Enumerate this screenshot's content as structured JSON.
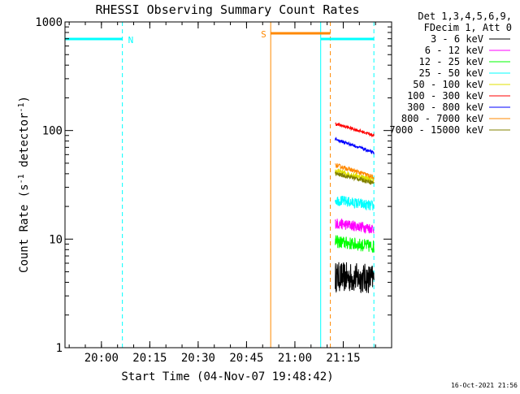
{
  "chart_data": {
    "type": "line",
    "title": "RHESSI Observing Summary Count Rates",
    "xlabel": "Start Time (04-Nov-07 19:48:42)",
    "ylabel_main": "Count Rate (s",
    "ylabel_sup1": "-1",
    "ylabel_mid": " detector",
    "ylabel_sup2": "-1",
    "ylabel_end": ")",
    "y_scale": "log",
    "ylim": [
      1,
      1000
    ],
    "xlim": [
      "19:48:42",
      "21:30:00"
    ],
    "x_ticks": [
      "20:00",
      "20:15",
      "20:30",
      "20:45",
      "21:00",
      "21:15"
    ],
    "y_ticks": [
      "1",
      "10",
      "100",
      "1000"
    ],
    "legend_header": [
      "Det 1,3,4,5,6,9,",
      "FDecim 1, Att 0"
    ],
    "legend_position": "right",
    "timestamp": "16-Oct-2021 21:56",
    "series": [
      {
        "name": "3 - 6 keV",
        "color": "#000000",
        "start": "21:12:30",
        "end": "21:24:30",
        "level_start": 4.5,
        "level_end": 4.3,
        "noise": 0.14
      },
      {
        "name": "6 - 12 keV",
        "color": "#ff00ff",
        "start": "21:12:30",
        "end": "21:24:30",
        "level_start": 14,
        "level_end": 12.5,
        "noise": 0.05
      },
      {
        "name": "12 - 25 keV",
        "color": "#00ff00",
        "start": "21:12:30",
        "end": "21:24:30",
        "level_start": 9.5,
        "level_end": 8.5,
        "noise": 0.06
      },
      {
        "name": "25 - 50 keV",
        "color": "#00ffff",
        "start": "21:12:30",
        "end": "21:24:30",
        "level_start": 23,
        "level_end": 20,
        "noise": 0.05
      },
      {
        "name": "50 - 100 keV",
        "color": "#e0e000",
        "start": "21:12:30",
        "end": "21:24:30",
        "level_start": 42,
        "level_end": 35,
        "noise": 0.03
      },
      {
        "name": "100 - 300 keV",
        "color": "#ff0000",
        "start": "21:12:30",
        "end": "21:24:30",
        "level_start": 115,
        "level_end": 90,
        "noise": 0.015
      },
      {
        "name": "300 - 800 keV",
        "color": "#0000ff",
        "start": "21:12:30",
        "end": "21:24:30",
        "level_start": 83,
        "level_end": 62,
        "noise": 0.015
      },
      {
        "name": "800 - 7000 keV",
        "color": "#ff8800",
        "start": "21:12:30",
        "end": "21:24:30",
        "level_start": 48,
        "level_end": 37,
        "noise": 0.02
      },
      {
        "name": "7000 - 15000 keV",
        "color": "#808000",
        "start": "21:12:30",
        "end": "21:24:30",
        "level_start": 40,
        "level_end": 33,
        "noise": 0.02
      }
    ],
    "flag_bars": [
      {
        "label": "N",
        "color": "#00ffff",
        "start": "19:48:42",
        "end": "20:06:30"
      },
      {
        "label": "",
        "color": "#00ffff",
        "start": "21:08:00",
        "end": "21:24:30"
      },
      {
        "label": "S",
        "color": "#ff8800",
        "start": "20:52:30",
        "end": "21:11:00"
      }
    ],
    "markers": [
      {
        "time": "19:48:42",
        "color": "#00ffff",
        "style": "solid"
      },
      {
        "time": "20:06:30",
        "color": "#00ffff",
        "style": "dashed"
      },
      {
        "time": "20:52:30",
        "color": "#ff8800",
        "style": "solid"
      },
      {
        "time": "21:08:00",
        "color": "#00ffff",
        "style": "solid"
      },
      {
        "time": "21:11:00",
        "color": "#ff8800",
        "style": "dashed"
      },
      {
        "time": "21:24:30",
        "color": "#00ffff",
        "style": "dashed"
      }
    ],
    "grid": false
  }
}
